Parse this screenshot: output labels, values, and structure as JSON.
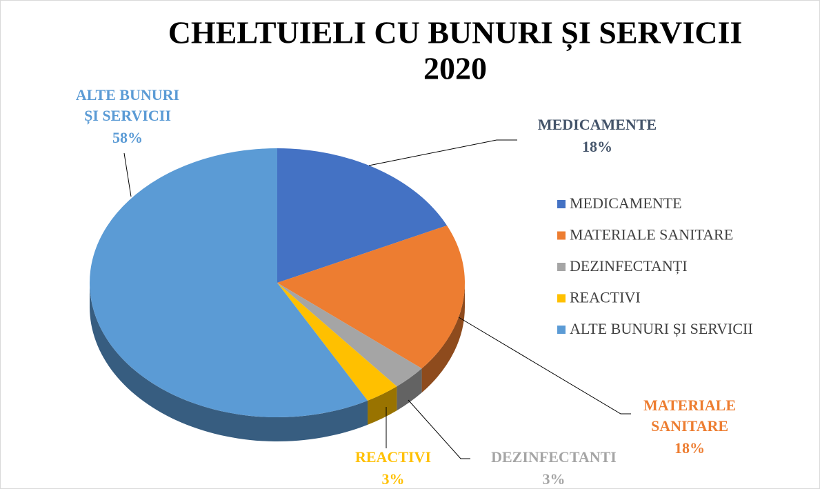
{
  "chart_data": {
    "type": "pie",
    "title": [
      "CHELTUIELI CU BUNURI ȘI SERVICII",
      "2020"
    ],
    "categories": [
      "MEDICAMENTE",
      "MATERIALE SANITARE",
      "DEZINFECTANȚI",
      "REACTIVI",
      "ALTE BUNURI ȘI SERVICII"
    ],
    "values": [
      18,
      18,
      3,
      3,
      58
    ],
    "value_labels": [
      "18%",
      "18%",
      "3%",
      "3%",
      "58%"
    ],
    "label_names": [
      [
        "MEDICAMENTE"
      ],
      [
        "MATERIALE",
        "SANITARE"
      ],
      [
        "DEZINFECTANTI"
      ],
      [
        "REACTIVI"
      ],
      [
        "ALTE BUNURI",
        "ȘI SERVICII"
      ]
    ],
    "colors": [
      "#4472c4",
      "#ed7d31",
      "#a5a5a5",
      "#ffc000",
      "#5b9bd5"
    ],
    "label_colors": [
      "#44546a",
      "#ed7d31",
      "#a5a5a5",
      "#ffc000",
      "#5b9bd5"
    ],
    "legend": "right"
  }
}
